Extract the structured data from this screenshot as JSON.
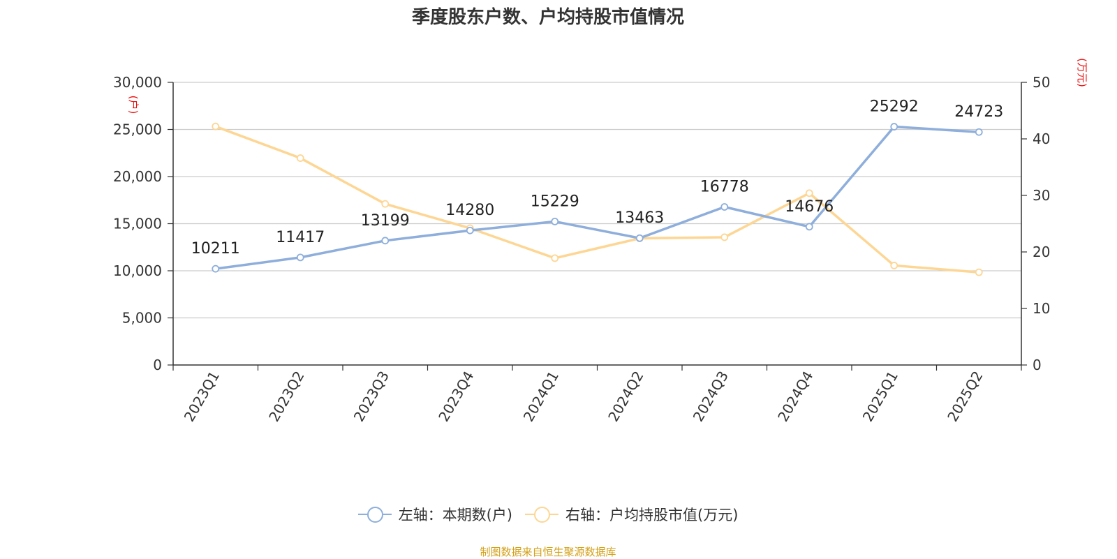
{
  "title": "季度股东户数、户均持股市值情况",
  "left_axis_unit": "(户)",
  "right_axis_unit": "(万元)",
  "source": "制图数据来自恒生聚源数据库",
  "colors": {
    "left_series": "#8eaedb",
    "right_series": "#fdd694",
    "unit_label": "#ee1111",
    "source": "#d4a017"
  },
  "legend": [
    {
      "label": "左轴：本期数(户)",
      "icon": "circle-line-icon",
      "color": "#8eaedb"
    },
    {
      "label": "右轴：户均持股市值(万元)",
      "icon": "circle-line-icon",
      "color": "#fdd694"
    }
  ],
  "chart_data": {
    "type": "line",
    "categories": [
      "2023Q1",
      "2023Q2",
      "2023Q3",
      "2023Q4",
      "2024Q1",
      "2024Q2",
      "2024Q3",
      "2024Q4",
      "2025Q1",
      "2025Q2"
    ],
    "y_left": {
      "ticks": [
        "0",
        "5,000",
        "10,000",
        "15,000",
        "20,000",
        "25,000",
        "30,000"
      ],
      "range": [
        0,
        30000
      ]
    },
    "y_right": {
      "ticks": [
        "0",
        "10",
        "20",
        "30",
        "40",
        "50"
      ],
      "range": [
        0,
        50
      ]
    },
    "grid": true,
    "legend_position": "bottom",
    "series": [
      {
        "name": "左轴：本期数(户)",
        "axis": "left",
        "color": "#8eaedb",
        "values": [
          10211,
          11417,
          13199,
          14280,
          15229,
          13463,
          16778,
          14676,
          25292,
          24723
        ],
        "labels": [
          "10211",
          "11417",
          "13199",
          "14280",
          "15229",
          "13463",
          "16778",
          "14676",
          "25292",
          "24723"
        ]
      },
      {
        "name": "右轴：户均持股市值(万元)",
        "axis": "right",
        "color": "#fdd694",
        "values": [
          42.2,
          36.6,
          28.5,
          24.2,
          18.9,
          22.4,
          22.6,
          30.4,
          17.6,
          16.4
        ]
      }
    ]
  }
}
